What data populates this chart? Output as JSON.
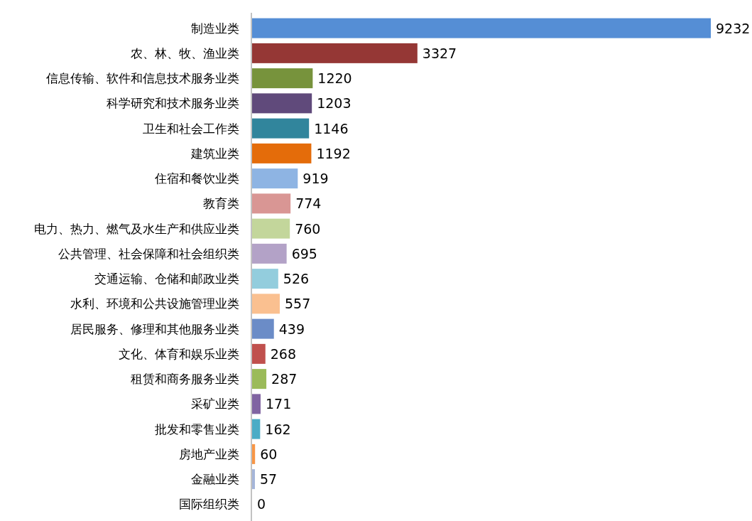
{
  "chart_data": {
    "type": "bar",
    "orientation": "horizontal",
    "data_labels": true,
    "categories": [
      "制造业类",
      "农、林、牧、渔业类",
      "信息传输、软件和信息技术服务业类",
      "科学研究和技术服务业类",
      "卫生和社会工作类",
      "建筑业类",
      "住宿和餐饮业类",
      "教育类",
      "电力、热力、燃气及水生产和供应业类",
      "公共管理、社会保障和社会组织类",
      "交通运输、仓储和邮政业类",
      "水利、环境和公共设施管理业类",
      "居民服务、修理和其他服务业类",
      "文化、体育和娱乐业类",
      "租赁和商务服务业类",
      "采矿业类",
      "批发和零售业类",
      "房地产业类",
      "金融业类",
      "国际组织类"
    ],
    "values": [
      9232,
      3327,
      1220,
      1203,
      1146,
      1192,
      919,
      774,
      760,
      695,
      526,
      557,
      439,
      268,
      287,
      171,
      162,
      60,
      57,
      0
    ],
    "colors": [
      "#558ed5",
      "#953735",
      "#77933c",
      "#604a7b",
      "#31859c",
      "#e46c0a",
      "#8eb4e3",
      "#d99694",
      "#c3d69b",
      "#b3a2c7",
      "#93cddd",
      "#fac090",
      "#6b8cc7",
      "#c0504d",
      "#9bbb59",
      "#8064a2",
      "#4bacc6",
      "#f79646",
      "#a5b5d9",
      "#558ed5"
    ]
  }
}
